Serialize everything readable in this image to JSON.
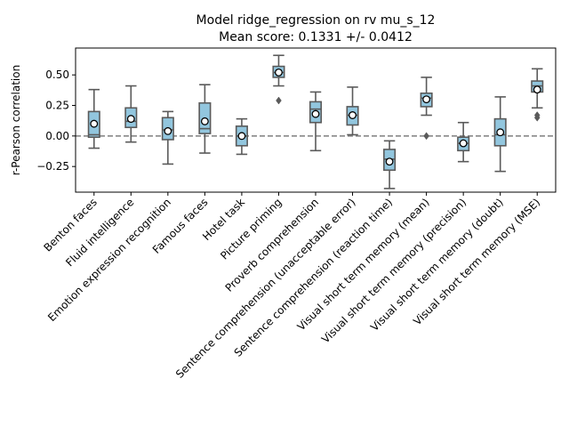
{
  "chart_data": {
    "type": "box",
    "title": "Model ridge_regression on rv mu_s_12",
    "subtitle": "Mean score: 0.1331 +/- 0.0412",
    "xlabel": "",
    "ylabel": "r-Pearson correlation",
    "ylim": [
      -0.46,
      0.72
    ],
    "yticks": [
      -0.25,
      0.0,
      0.25,
      0.5
    ],
    "ytick_labels": [
      "−0.25",
      "0.00",
      "0.25",
      "0.50"
    ],
    "reference_line": 0.0,
    "grid": false,
    "box_color": "#92c6de",
    "line_color": "#5a5a5a",
    "reference_line_color": "#7f7f7f",
    "categories": [
      "Benton faces",
      "Fluid intelligence",
      "Emotion expression recognition",
      "Famous faces",
      "Hotel task",
      "Picture priming",
      "Proverb comprehension",
      "Sentence comprehension (unacceptable error)",
      "Sentence comprehension (reaction time)",
      "Visual short term memory (mean)",
      "Visual short term memory (precision)",
      "Visual short term memory (doubt)",
      "Visual short term memory (MSE)"
    ],
    "boxes": [
      {
        "whislo": -0.1,
        "q1": -0.01,
        "med": 0.01,
        "q3": 0.2,
        "whishi": 0.38,
        "mean": 0.1,
        "fliers": []
      },
      {
        "whislo": -0.05,
        "q1": 0.07,
        "med": 0.12,
        "q3": 0.23,
        "whishi": 0.41,
        "mean": 0.14,
        "fliers": []
      },
      {
        "whislo": -0.23,
        "q1": -0.03,
        "med": 0.05,
        "q3": 0.15,
        "whishi": 0.2,
        "mean": 0.04,
        "fliers": []
      },
      {
        "whislo": -0.14,
        "q1": 0.02,
        "med": 0.06,
        "q3": 0.27,
        "whishi": 0.42,
        "mean": 0.12,
        "fliers": []
      },
      {
        "whislo": -0.15,
        "q1": -0.08,
        "med": 0.0,
        "q3": 0.08,
        "whishi": 0.14,
        "mean": 0.0,
        "fliers": []
      },
      {
        "whislo": 0.41,
        "q1": 0.48,
        "med": 0.52,
        "q3": 0.57,
        "whishi": 0.66,
        "mean": 0.52,
        "fliers": [
          0.29
        ]
      },
      {
        "whislo": -0.12,
        "q1": 0.11,
        "med": 0.22,
        "q3": 0.28,
        "whishi": 0.36,
        "mean": 0.18,
        "fliers": []
      },
      {
        "whislo": 0.01,
        "q1": 0.09,
        "med": 0.17,
        "q3": 0.24,
        "whishi": 0.4,
        "mean": 0.17,
        "fliers": []
      },
      {
        "whislo": -0.43,
        "q1": -0.28,
        "med": -0.19,
        "q3": -0.11,
        "whishi": -0.04,
        "mean": -0.21,
        "fliers": []
      },
      {
        "whislo": 0.17,
        "q1": 0.24,
        "med": 0.31,
        "q3": 0.35,
        "whishi": 0.48,
        "mean": 0.3,
        "fliers": [
          0.0
        ]
      },
      {
        "whislo": -0.21,
        "q1": -0.12,
        "med": -0.06,
        "q3": -0.01,
        "whishi": 0.11,
        "mean": -0.06,
        "fliers": []
      },
      {
        "whislo": -0.29,
        "q1": -0.08,
        "med": 0.01,
        "q3": 0.14,
        "whishi": 0.32,
        "mean": 0.03,
        "fliers": []
      },
      {
        "whislo": 0.23,
        "q1": 0.36,
        "med": 0.41,
        "q3": 0.45,
        "whishi": 0.55,
        "mean": 0.38,
        "fliers": [
          0.15,
          0.17
        ]
      }
    ]
  }
}
